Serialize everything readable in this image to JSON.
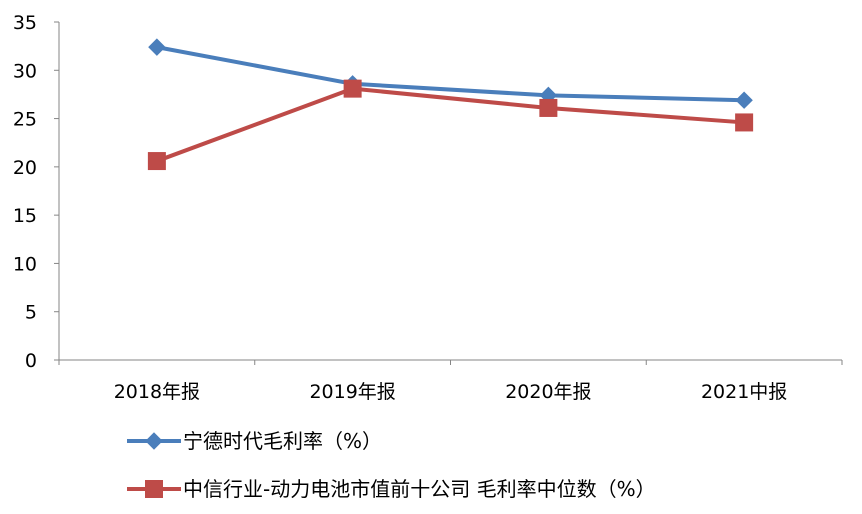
{
  "chart_data": {
    "type": "line",
    "categories": [
      "2018年报",
      "2019年报",
      "2020年报",
      "2021中报"
    ],
    "series": [
      {
        "name": "宁德时代毛利率（%）",
        "values": [
          32.4,
          28.6,
          27.4,
          26.9
        ],
        "color": "#4a7ebb",
        "marker": "diamond"
      },
      {
        "name": "中信行业-动力电池市值前十公司 毛利率中位数（%）",
        "values": [
          20.6,
          28.1,
          26.1,
          24.6
        ],
        "color": "#be4b48",
        "marker": "square"
      }
    ],
    "yticks": [
      "0",
      "5",
      "10",
      "15",
      "20",
      "25",
      "30",
      "35"
    ],
    "ylim": [
      0,
      35
    ],
    "grid": false,
    "legend_position": "bottom"
  }
}
